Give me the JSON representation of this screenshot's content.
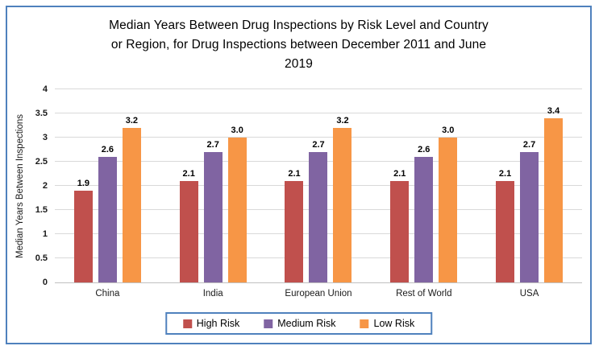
{
  "window": {
    "background": "#FFFFFF",
    "frame_border_color": "#4F81BD"
  },
  "chart_data": {
    "type": "bar",
    "title": "Median Years Between Drug Inspections by Risk Level and Country or Region, for Drug Inspections between December 2011 and June 2019",
    "title_lines": [
      "Median Years Between Drug Inspections by Risk Level and Country",
      "or Region, for Drug Inspections between December 2011 and June",
      "2019"
    ],
    "xlabel": "",
    "ylabel": "Median  Years Between Inspections",
    "categories": [
      "China",
      "India",
      "European Union",
      "Rest of World",
      "USA"
    ],
    "series": [
      {
        "name": "High Risk",
        "color": "#C0504D",
        "values": [
          1.9,
          2.1,
          2.1,
          2.1,
          2.1
        ]
      },
      {
        "name": "Medium Risk",
        "color": "#8064A2",
        "values": [
          2.6,
          2.7,
          2.7,
          2.6,
          2.7
        ]
      },
      {
        "name": "Low Risk",
        "color": "#F79646",
        "values": [
          3.2,
          3.0,
          3.2,
          3.0,
          3.4
        ]
      }
    ],
    "ylim": [
      0,
      4
    ],
    "yticks": [
      0,
      0.5,
      1,
      1.5,
      2,
      2.5,
      3,
      3.5,
      4
    ],
    "ytick_labels": [
      "0",
      "0.5",
      "1",
      "1.5",
      "2",
      "2.5",
      "3",
      "3.5",
      "4"
    ],
    "grid": true,
    "gridline_color": "#D9D9D9",
    "axis_line_color": "#C0C0C0",
    "data_labels": true,
    "legend_position": "bottom"
  }
}
